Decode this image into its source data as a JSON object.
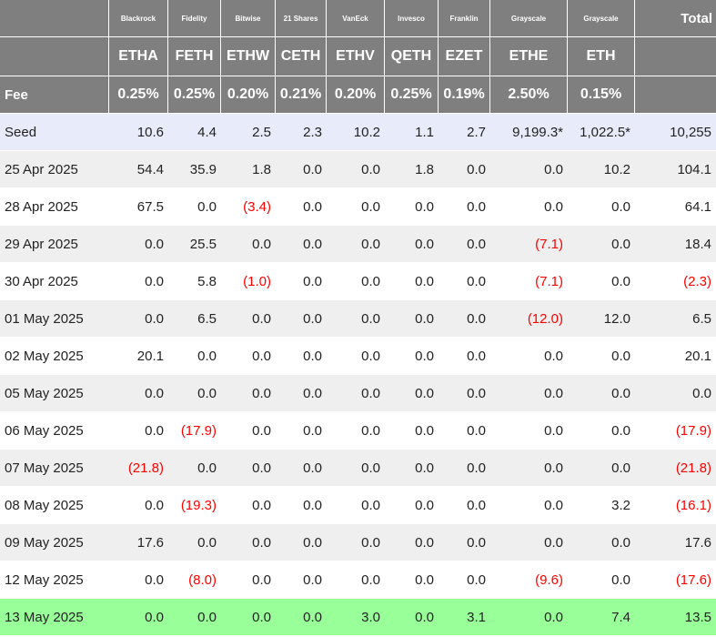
{
  "issuers": [
    "Blackrock",
    "Fidelity",
    "Bitwise",
    "21 Shares",
    "VanEck",
    "Invesco",
    "Franklin",
    "Grayscale",
    "Grayscale"
  ],
  "total_label": "Total",
  "tickers": [
    "ETHA",
    "FETH",
    "ETHW",
    "CETH",
    "ETHV",
    "QETH",
    "EZET",
    "ETHE",
    "ETH"
  ],
  "fee_label": "Fee",
  "fees": [
    "0.25%",
    "0.25%",
    "0.20%",
    "0.21%",
    "0.20%",
    "0.25%",
    "0.19%",
    "2.50%",
    "0.15%"
  ],
  "colors": {
    "header_bg": "#7f7f7f",
    "seed_bg": "#e8ecfa",
    "highlight_bg": "#99ff99",
    "negative": "#ff0000",
    "stripe": "#efefef"
  },
  "rows": [
    {
      "date": "Seed",
      "values": [
        "10.6",
        "4.4",
        "2.5",
        "2.3",
        "10.2",
        "1.1",
        "2.7",
        "9,199.3*",
        "1,022.5*"
      ],
      "total": "10,255"
    },
    {
      "date": "25 Apr 2025",
      "values": [
        "54.4",
        "35.9",
        "1.8",
        "0.0",
        "0.0",
        "1.8",
        "0.0",
        "0.0",
        "10.2"
      ],
      "total": "104.1"
    },
    {
      "date": "28 Apr 2025",
      "values": [
        "67.5",
        "0.0",
        "(3.4)",
        "0.0",
        "0.0",
        "0.0",
        "0.0",
        "0.0",
        "0.0"
      ],
      "total": "64.1"
    },
    {
      "date": "29 Apr 2025",
      "values": [
        "0.0",
        "25.5",
        "0.0",
        "0.0",
        "0.0",
        "0.0",
        "0.0",
        "(7.1)",
        "0.0"
      ],
      "total": "18.4"
    },
    {
      "date": "30 Apr 2025",
      "values": [
        "0.0",
        "5.8",
        "(1.0)",
        "0.0",
        "0.0",
        "0.0",
        "0.0",
        "(7.1)",
        "0.0"
      ],
      "total": "(2.3)"
    },
    {
      "date": "01 May 2025",
      "values": [
        "0.0",
        "6.5",
        "0.0",
        "0.0",
        "0.0",
        "0.0",
        "0.0",
        "(12.0)",
        "12.0"
      ],
      "total": "6.5"
    },
    {
      "date": "02 May 2025",
      "values": [
        "20.1",
        "0.0",
        "0.0",
        "0.0",
        "0.0",
        "0.0",
        "0.0",
        "0.0",
        "0.0"
      ],
      "total": "20.1"
    },
    {
      "date": "05 May 2025",
      "values": [
        "0.0",
        "0.0",
        "0.0",
        "0.0",
        "0.0",
        "0.0",
        "0.0",
        "0.0",
        "0.0"
      ],
      "total": "0.0"
    },
    {
      "date": "06 May 2025",
      "values": [
        "0.0",
        "(17.9)",
        "0.0",
        "0.0",
        "0.0",
        "0.0",
        "0.0",
        "0.0",
        "0.0"
      ],
      "total": "(17.9)"
    },
    {
      "date": "07 May 2025",
      "values": [
        "(21.8)",
        "0.0",
        "0.0",
        "0.0",
        "0.0",
        "0.0",
        "0.0",
        "0.0",
        "0.0"
      ],
      "total": "(21.8)"
    },
    {
      "date": "08 May 2025",
      "values": [
        "0.0",
        "(19.3)",
        "0.0",
        "0.0",
        "0.0",
        "0.0",
        "0.0",
        "0.0",
        "3.2"
      ],
      "total": "(16.1)"
    },
    {
      "date": "09 May 2025",
      "values": [
        "17.6",
        "0.0",
        "0.0",
        "0.0",
        "0.0",
        "0.0",
        "0.0",
        "0.0",
        "0.0"
      ],
      "total": "17.6"
    },
    {
      "date": "12 May 2025",
      "values": [
        "0.0",
        "(8.0)",
        "0.0",
        "0.0",
        "0.0",
        "0.0",
        "0.0",
        "(9.6)",
        "0.0"
      ],
      "total": "(17.6)"
    },
    {
      "date": "13 May 2025",
      "values": [
        "0.0",
        "0.0",
        "0.0",
        "0.0",
        "3.0",
        "0.0",
        "3.1",
        "0.0",
        "7.4"
      ],
      "total": "13.5"
    }
  ]
}
